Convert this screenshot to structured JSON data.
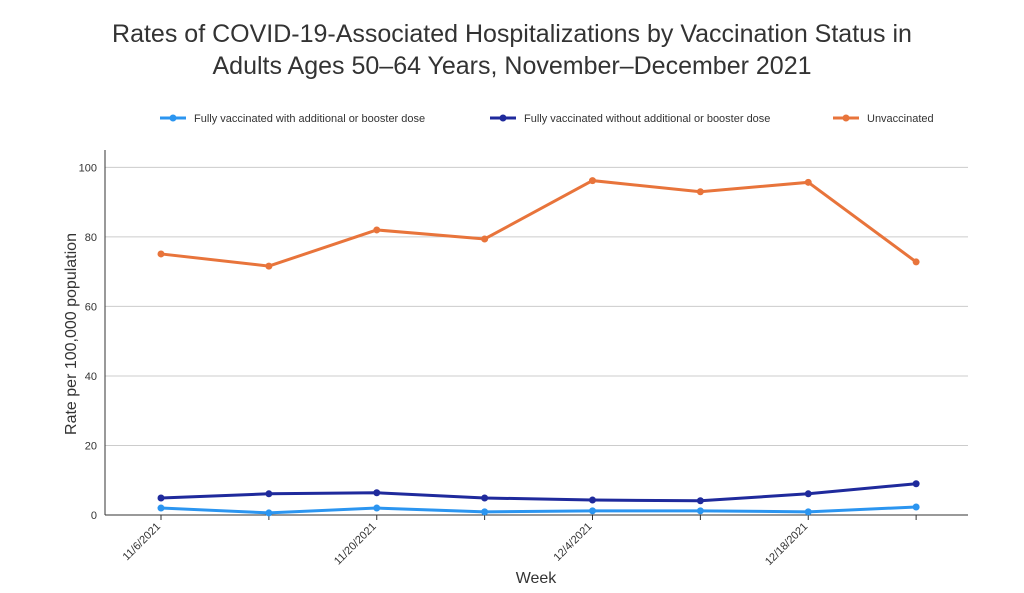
{
  "chart_data": {
    "type": "line",
    "title": "Rates of COVID-19-Associated Hospitalizations by Vaccination Status in Adults Ages 50–64 Years, November–December 2021",
    "x_label": "Week",
    "y_label": "Rate per 100,000 population",
    "categories": [
      "11/6/2021",
      null,
      "11/20/2021",
      null,
      "12/4/2021",
      null,
      "12/18/2021",
      null
    ],
    "series": [
      {
        "name": "Fully vaccinated with additional or booster dose",
        "color": "#2b95f0",
        "values": [
          2.0,
          0.6,
          2.0,
          0.9,
          1.2,
          1.2,
          0.9,
          2.3
        ]
      },
      {
        "name": "Fully vaccinated without additional or booster dose",
        "color": "#1f2a9c",
        "values": [
          4.9,
          6.1,
          6.4,
          4.9,
          4.3,
          4.1,
          6.1,
          9.0
        ]
      },
      {
        "name": "Unvaccinated",
        "color": "#e8743b",
        "values": [
          75.1,
          71.6,
          82.0,
          79.4,
          96.2,
          93.0,
          95.7,
          72.8
        ]
      }
    ],
    "ylim": [
      0,
      105
    ],
    "yticks": [
      0,
      20,
      40,
      60,
      80,
      100
    ],
    "grid": true
  }
}
